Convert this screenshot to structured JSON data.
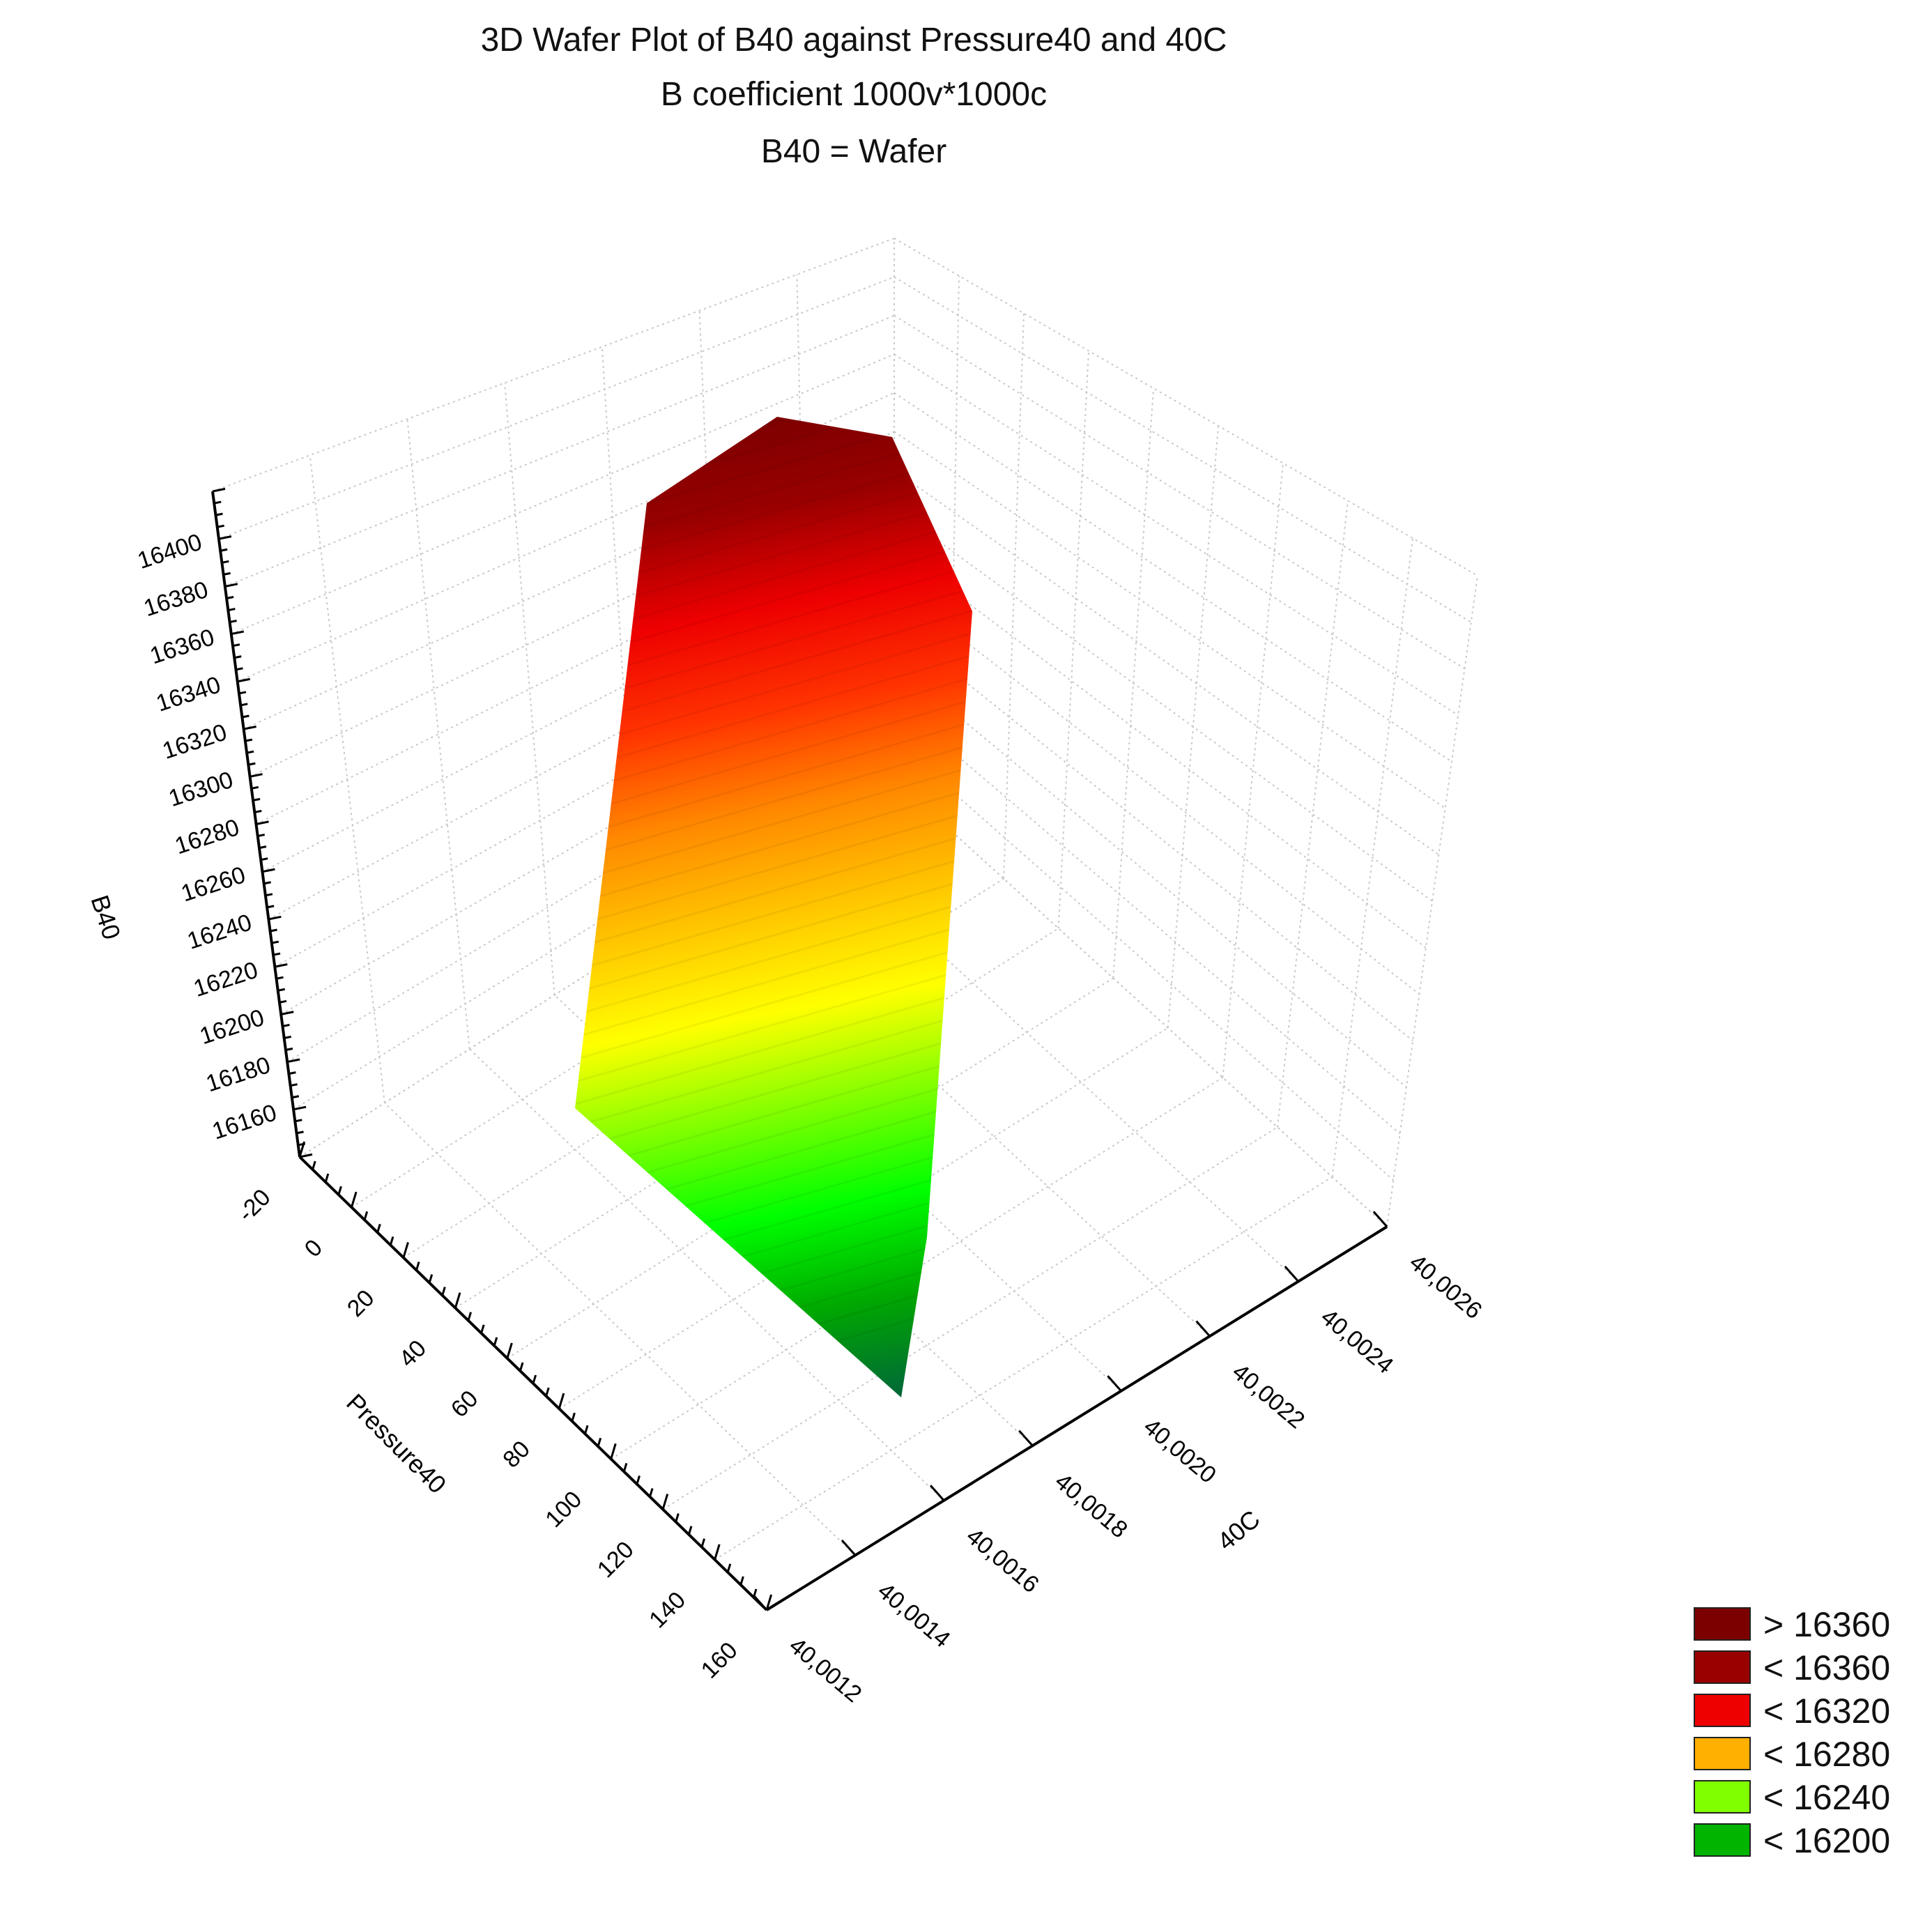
{
  "chart_data": {
    "type": "3d-surface",
    "title_lines": [
      "3D Wafer Plot of B40 against Pressure40 and 40C",
      "B coefficient 1000v*1000c",
      "B40 = Wafer"
    ],
    "z_label": "B40",
    "x_label": "Pressure40",
    "y_label": "40C",
    "z_ticks": [
      "16160",
      "16180",
      "16200",
      "16220",
      "16240",
      "16260",
      "16280",
      "16300",
      "16320",
      "16340",
      "16360",
      "16380",
      "16400"
    ],
    "x_ticks": [
      "-20",
      "0",
      "20",
      "40",
      "60",
      "80",
      "100",
      "120",
      "140",
      "160"
    ],
    "y_ticks": [
      "40,0012",
      "40,0014",
      "40,0016",
      "40,0018",
      "40,0020",
      "40,0022",
      "40,0024",
      "40,0026"
    ],
    "z_range": [
      16140,
      16410
    ],
    "x_range": [
      -20,
      160
    ],
    "y_range": [
      40.0012,
      40.0026
    ],
    "surface_outline": [
      {
        "pressure40": 0,
        "c40": 40.0014,
        "b40": 16150
      },
      {
        "pressure40": 150,
        "c40": 40.0013,
        "b40": 16175
      },
      {
        "pressure40": 150,
        "c40": 40.0017,
        "b40": 16260
      },
      {
        "pressure40": 130,
        "c40": 40.0021,
        "b40": 16390
      },
      {
        "pressure40": 60,
        "c40": 40.0021,
        "b40": 16405
      },
      {
        "pressure40": 0,
        "c40": 40.0019,
        "b40": 16395
      },
      {
        "pressure40": -10,
        "c40": 40.0016,
        "b40": 16330
      }
    ],
    "colors": [
      "#006838",
      "#00a800",
      "#00ff00",
      "#80ff00",
      "#ffff00",
      "#ffc400",
      "#ff8800",
      "#ff3300",
      "#ee0000",
      "#990000",
      "#7a0000"
    ],
    "legend": [
      {
        "label": "> 16360",
        "color": "#7d0000"
      },
      {
        "label": "< 16360",
        "color": "#990000"
      },
      {
        "label": "< 16320",
        "color": "#ee0000"
      },
      {
        "label": "< 16280",
        "color": "#ffb000"
      },
      {
        "label": "< 16240",
        "color": "#80ff00"
      },
      {
        "label": "< 16200",
        "color": "#00b400"
      }
    ],
    "grid": true
  }
}
